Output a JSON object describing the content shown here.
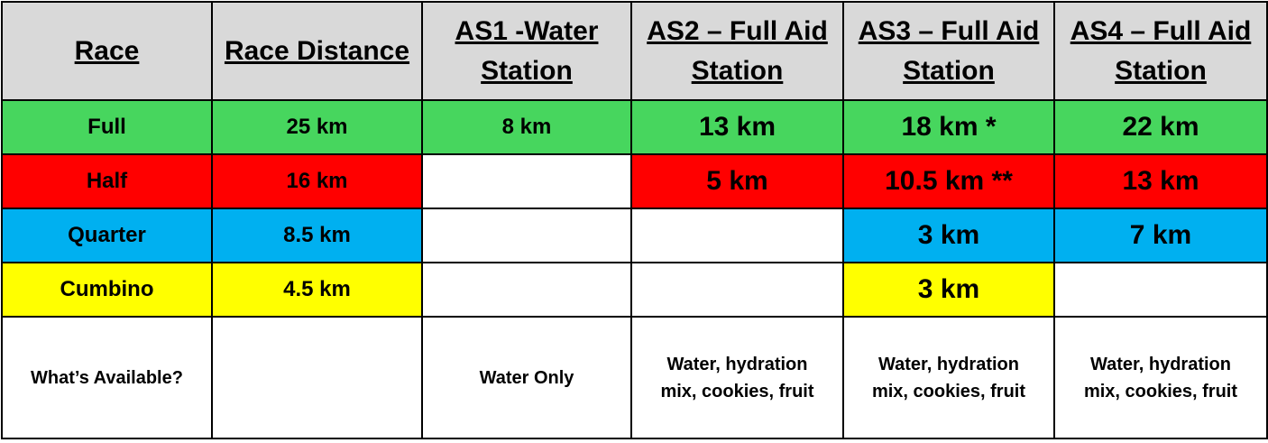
{
  "colors": {
    "header": "#d9d9d9",
    "full": "#47d65e",
    "half": "#ff0000",
    "quarter": "#00b0f0",
    "cumbino": "#ffff00",
    "empty": "#ffffff"
  },
  "headers": [
    "Race",
    "Race Distance",
    "AS1 -Water Station",
    "AS2 – Full Aid Station",
    "AS3 – Full Aid Station",
    "AS4 – Full Aid Station"
  ],
  "rows": [
    {
      "race": "Full",
      "distance": "25 km",
      "as1": "8 km",
      "as2": "13 km",
      "as3": "18 km *",
      "as4": "22 km"
    },
    {
      "race": "Half",
      "distance": "16 km",
      "as1": "",
      "as2": "5 km",
      "as3": "10.5 km **",
      "as4": "13 km"
    },
    {
      "race": "Quarter",
      "distance": "8.5 km",
      "as1": "",
      "as2": "",
      "as3": "3 km",
      "as4": "7 km"
    },
    {
      "race": "Cumbino",
      "distance": "4.5 km",
      "as1": "",
      "as2": "",
      "as3": "3 km",
      "as4": ""
    }
  ],
  "available": {
    "label": "What’s Available?",
    "distance": "",
    "as1": "Water Only",
    "as2": "Water, hydration mix, cookies, fruit",
    "as3": "Water, hydration mix, cookies, fruit",
    "as4": "Water, hydration mix, cookies, fruit"
  }
}
